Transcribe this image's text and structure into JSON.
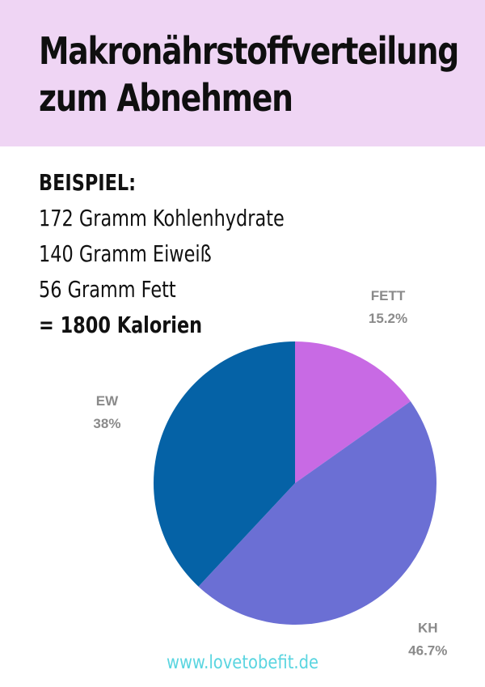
{
  "header": {
    "title_line1": "Makronährstoffverteilung",
    "title_line2": "zum Abnehmen",
    "background_color": "#efd5f4"
  },
  "example": {
    "heading": "BEISPIEL:",
    "line1": "172 Gramm Kohlenhydrate",
    "line2": "140 Gramm Eiweiß",
    "line3": "56 Gramm Fett",
    "total": "= 1800 Kalorien"
  },
  "chart_data": {
    "type": "pie",
    "slices": [
      {
        "label": "FETT",
        "value": 15.2,
        "value_label": "15.2%",
        "color": "#c86ae4"
      },
      {
        "label": "KH",
        "value": 46.7,
        "value_label": "46.7%",
        "color": "#6b6fd4"
      },
      {
        "label": "EW",
        "value": 38,
        "value_label": "38%",
        "color": "#0562a6"
      }
    ]
  },
  "footer": {
    "url": "www.lovetobefit.de",
    "color": "#5ad5e0"
  }
}
